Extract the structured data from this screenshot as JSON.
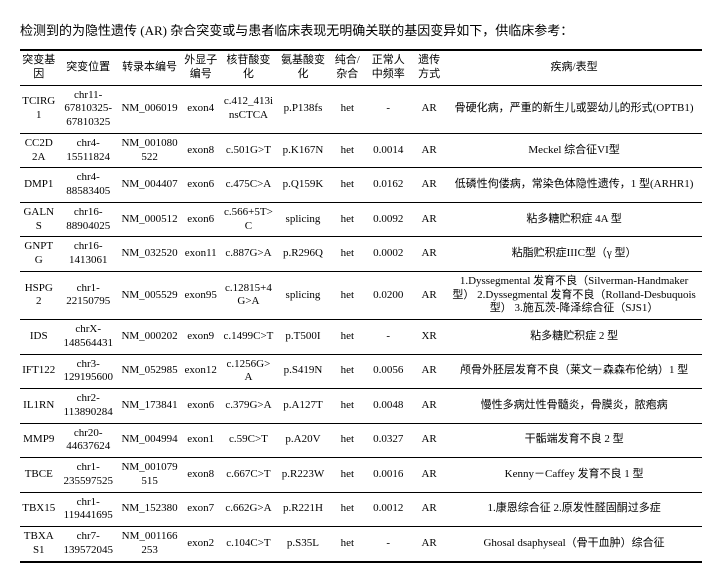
{
  "intro": "检测到的为隐性遗传 (AR) 杂合突变或与患者临床表现无明确关联的基因变异如下，供临床参考：",
  "headers": {
    "gene": "突变基因",
    "pos": "突变位置",
    "transcript": "转录本编号",
    "exon": "外显子编号",
    "nt": "核苷酸变化",
    "aa": "氨基酸变化",
    "hethom": "纯合/杂合",
    "freq": "正常人中频率",
    "inherit": "遗传方式",
    "disease": "疾病/表型"
  },
  "rows": [
    {
      "gene": "TCIRG1",
      "pos": "chr11-67810325-67810325",
      "transcript": "NM_006019",
      "exon": "exon4",
      "nt": "c.412_413insCTCA",
      "aa": "p.P138fs",
      "hethom": "het",
      "freq": "-",
      "inherit": "AR",
      "disease": "骨硬化病，严重的新生儿或婴幼儿的形式(OPTB1)"
    },
    {
      "gene": "CC2D2A",
      "pos": "chr4-15511824",
      "transcript": "NM_001080522",
      "exon": "exon8",
      "nt": "c.501G>T",
      "aa": "p.K167N",
      "hethom": "het",
      "freq": "0.0014",
      "inherit": "AR",
      "disease": "Meckel 综合征VI型"
    },
    {
      "gene": "DMP1",
      "pos": "chr4-88583405",
      "transcript": "NM_004407",
      "exon": "exon6",
      "nt": "c.475C>A",
      "aa": "p.Q159K",
      "hethom": "het",
      "freq": "0.0162",
      "inherit": "AR",
      "disease": "低磷性佝偻病，常染色体隐性遗传，1 型(ARHR1)"
    },
    {
      "gene": "GALNS",
      "pos": "chr16-88904025",
      "transcript": "NM_000512",
      "exon": "exon6",
      "nt": "c.566+5T>C",
      "aa": "splicing",
      "hethom": "het",
      "freq": "0.0092",
      "inherit": "AR",
      "disease": "粘多糖贮积症 4A 型"
    },
    {
      "gene": "GNPTG",
      "pos": "chr16-1413061",
      "transcript": "NM_032520",
      "exon": "exon11",
      "nt": "c.887G>A",
      "aa": "p.R296Q",
      "hethom": "het",
      "freq": "0.0002",
      "inherit": "AR",
      "disease": "粘脂贮积症IIIC型（γ 型）"
    },
    {
      "gene": "HSPG2",
      "pos": "chr1-22150795",
      "transcript": "NM_005529",
      "exon": "exon95",
      "nt": "c.12815+4G>A",
      "aa": "splicing",
      "hethom": "het",
      "freq": "0.0200",
      "inherit": "AR",
      "disease": "1.Dyssegmental 发育不良（Silverman-Handmaker 型） 2.Dyssegmental 发育不良（Rolland-Desbuquois 型）  3.施瓦茨-降泽综合征（SJS1）"
    },
    {
      "gene": "IDS",
      "pos": "chrX-148564431",
      "transcript": "NM_000202",
      "exon": "exon9",
      "nt": "c.1499C>T",
      "aa": "p.T500I",
      "hethom": "het",
      "freq": "-",
      "inherit": "XR",
      "disease": "粘多糖贮积症 2 型"
    },
    {
      "gene": "IFT122",
      "pos": "chr3-129195600",
      "transcript": "NM_052985",
      "exon": "exon12",
      "nt": "c.1256G>A",
      "aa": "p.S419N",
      "hethom": "het",
      "freq": "0.0056",
      "inherit": "AR",
      "disease": "颅骨外胚层发育不良（莱文－森森布伦纳）1 型"
    },
    {
      "gene": "IL1RN",
      "pos": "chr2-113890284",
      "transcript": "NM_173841",
      "exon": "exon6",
      "nt": "c.379G>A",
      "aa": "p.A127T",
      "hethom": "het",
      "freq": "0.0048",
      "inherit": "AR",
      "disease": "慢性多病灶性骨髓炎，骨膜炎，脓疱病"
    },
    {
      "gene": "MMP9",
      "pos": "chr20-44637624",
      "transcript": "NM_004994",
      "exon": "exon1",
      "nt": "c.59C>T",
      "aa": "p.A20V",
      "hethom": "het",
      "freq": "0.0327",
      "inherit": "AR",
      "disease": "干骺端发育不良 2 型"
    },
    {
      "gene": "TBCE",
      "pos": "chr1-235597525",
      "transcript": "NM_001079515",
      "exon": "exon8",
      "nt": "c.667C>T",
      "aa": "p.R223W",
      "hethom": "het",
      "freq": "0.0016",
      "inherit": "AR",
      "disease": "Kenny－Caffey 发育不良 1 型"
    },
    {
      "gene": "TBX15",
      "pos": "chr1-119441695",
      "transcript": "NM_152380",
      "exon": "exon7",
      "nt": "c.662G>A",
      "aa": "p.R221H",
      "hethom": "het",
      "freq": "0.0012",
      "inherit": "AR",
      "disease": "1.康恩综合征 2.原发性醛固酮过多症"
    },
    {
      "gene": "TBXAS1",
      "pos": "chr7-139572045",
      "transcript": "NM_001166253",
      "exon": "exon2",
      "nt": "c.104C>T",
      "aa": "p.S35L",
      "hethom": "het",
      "freq": "-",
      "inherit": "AR",
      "disease": "Ghosal dsaphyseal（骨干血肿）综合征"
    }
  ]
}
